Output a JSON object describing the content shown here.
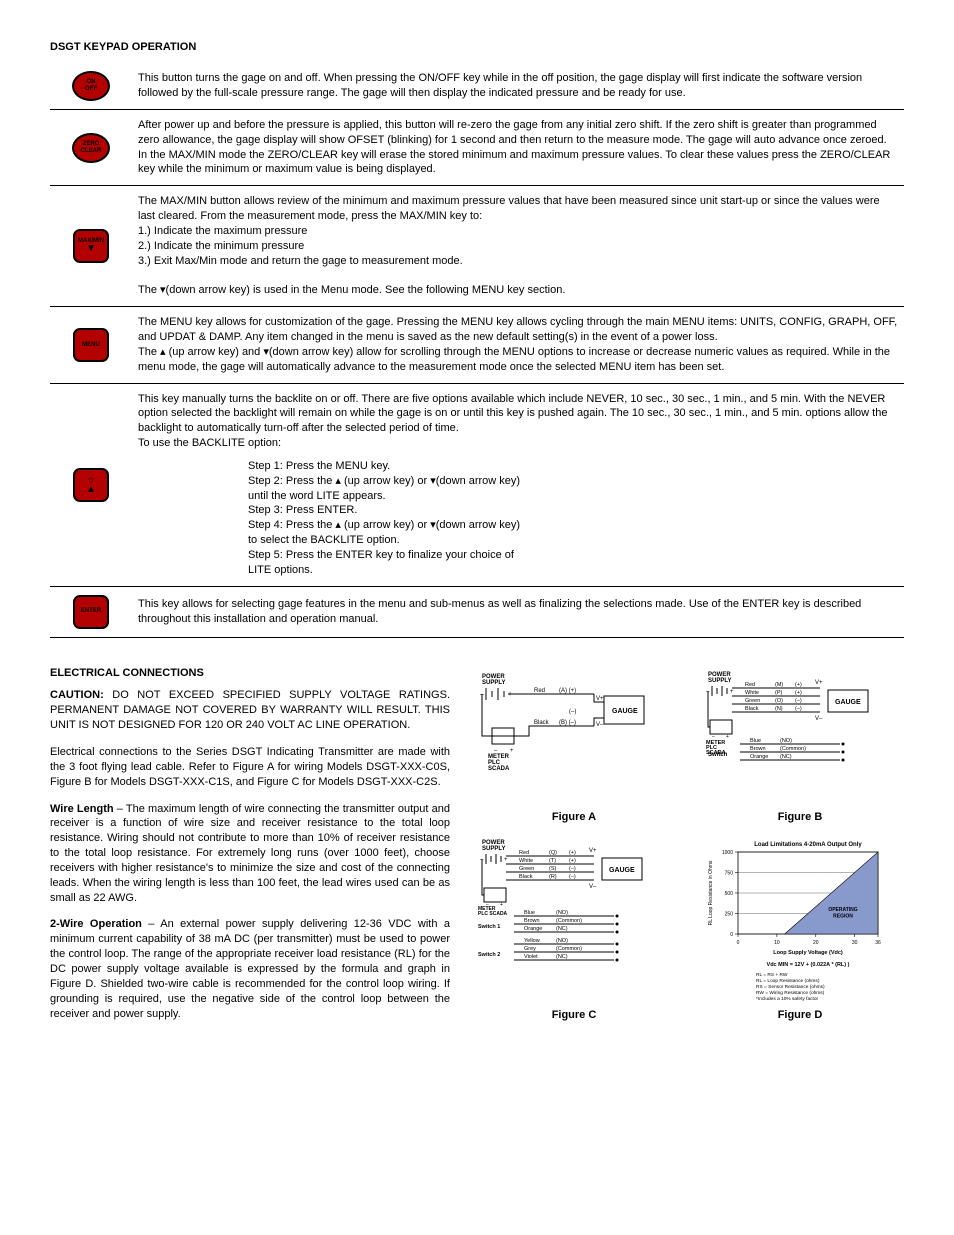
{
  "section1_title": "DSGT KEYPAD OPERATION",
  "keys": [
    {
      "label_top": "ON",
      "label_bot": "OFF",
      "shape": "oval",
      "desc": "This button turns the gage on and off.  When pressing the ON/OFF key while in the off position, the gage display will first indicate the software version followed by the full-scale pressure range.  The gage will then display the indicated pressure and be ready for use."
    },
    {
      "label_top": "ZERO",
      "label_bot": "CLEAR",
      "shape": "oval",
      "desc": "After power up and before the pressure is applied, this button will re-zero the gage from any initial zero shift.  If the zero shift is greater than programmed zero allowance, the gage display will show OFSET (blinking) for 1 second and then return to the measure mode. The gage will auto advance once zeroed.\nIn the MAX/MIN mode the ZERO/CLEAR key will erase the stored minimum and maximum pressure values.  To clear these values press the ZERO/CLEAR key while the minimum or maximum value is being displayed."
    },
    {
      "label_top": "MAX/MIN",
      "label_bot": "▼",
      "shape": "rect",
      "desc": "The MAX/MIN button allows review of the minimum and maximum pressure values that have been measured since unit start-up or since the values were last cleared. From the measurement mode, press the MAX/MIN key to:\n1.) Indicate the maximum pressure\n2.) Indicate the minimum pressure\n3.) Exit Max/Min mode and return the gage to measurement mode.\n\nThe ▾(down arrow key) is used in the Menu mode.  See the following MENU key section."
    },
    {
      "label_top": "MENU",
      "label_bot": "",
      "shape": "rect",
      "desc": "The MENU key allows for customization of the gage. Pressing the MENU key allows cycling through the main MENU items: UNITS, CONFIG, GRAPH, OFF, and UPDAT & DAMP. Any item changed in the menu is saved as the new default setting(s) in the event of a power loss.\nThe ▴ (up arrow key) and ▾(down arrow key) allow for scrolling through the MENU options to increase or decrease numeric values as required.  While in the menu mode, the gage will automatically advance to the measurement mode once the selected MENU item has been set."
    },
    {
      "label_top": "☼",
      "label_bot": "▲",
      "shape": "rect",
      "desc": "This key manually turns the backlite on or off. There are five options available which include NEVER, 10 sec., 30 sec., 1 min., and 5 min.  With the NEVER option selected the backlight will remain on while the gage is on or until this key is pushed again. The 10 sec., 30 sec., 1 min., and 5 min. options allow the backlight to automatically turn-off after the selected period of time.\nTo use the BACKLITE option:",
      "steps": "Step 1: Press the MENU key.\nStep 2: Press the ▴ (up arrow key) or ▾(down arrow key)\nuntil the word LITE appears.\nStep 3: Press ENTER.\nStep 4: Press the ▴ (up arrow key) or ▾(down arrow key)\nto select the BACKLITE option.\nStep 5: Press the ENTER key to finalize your choice of\nLITE options."
    },
    {
      "label_top": "ENTER",
      "label_bot": "",
      "shape": "rect",
      "desc": "This key allows for selecting gage features in the menu and sub-menus as well as finalizing the selections made. Use of the ENTER key is described throughout this installation and operation manual."
    }
  ],
  "section2_title": "ELECTRICAL CONNECTIONS",
  "caution_label": "CAUTION:",
  "caution_text": "DO NOT EXCEED SPECIFIED SUPPLY VOLTAGE RATINGS.  PERMANENT DAMAGE NOT COVERED BY WARRANTY WILL RESULT.  THIS UNIT IS NOT DESIGNED FOR 120 OR 240 VOLT AC LINE OPERATION.",
  "para_conn": "Electrical connections to the Series DSGT Indicating Transmitter are made with the 3 foot flying lead cable.  Refer to Figure A for wiring Models DSGT-XXX-C0S, Figure B for Models DSGT-XXX-C1S, and Figure C for Models DSGT-XXX-C2S.",
  "wire_label": "Wire Length",
  "wire_text": " – The maximum length of wire connecting the transmitter output and receiver is a function of wire size and receiver resistance to the total loop resistance.  Wiring should not contribute to more than 10% of receiver resistance to the total loop resistance. For extremely long runs (over 1000 feet), choose receivers with higher resistance's to minimize the size and cost of the connecting leads.  When the wiring length is less than 100 feet, the lead wires used can be as small as 22 AWG.",
  "twowire_label": "2-Wire Operation",
  "twowire_text": " – An external power supply delivering 12-36 VDC with a minimum current capability of 38 mA DC (per transmitter) must be used to power the control loop.  The range of the appropriate receiver load resistance (RL) for the DC power supply voltage available is expressed by the formula and graph in Figure D. Shielded two-wire cable is recommended for the control loop wiring. If grounding is required, use the negative side of the control  loop between the receiver and power supply.",
  "figA": {
    "label": "Figure A",
    "ps": "POWER\nSUPPLY",
    "wires": [
      {
        "color": "Red",
        "tag": "(A) (+)"
      },
      {
        "color": "Black",
        "tag": "(B) (–)"
      }
    ],
    "vplus": "V+",
    "vminus": "V–",
    "minus": "(–)",
    "gauge": "GAUGE",
    "meter": "METER\nPLC\nSCADA"
  },
  "figB": {
    "label": "Figure B",
    "ps": "POWER\nSUPPLY",
    "wires": [
      {
        "color": "Red",
        "tag": "(M)",
        "sign": "(+)"
      },
      {
        "color": "White",
        "tag": "(P)",
        "sign": "(+)"
      },
      {
        "color": "Green",
        "tag": "(O)",
        "sign": "(–)"
      },
      {
        "color": "Black",
        "tag": "(N)",
        "sign": "(–)"
      }
    ],
    "vplus": "V+",
    "vminus": "V–",
    "gauge": "GAUGE",
    "meter": "METER\nPLC\nSCADA",
    "sw": "Switch",
    "sw_wires": [
      {
        "color": "Blue",
        "tag": "(NO)"
      },
      {
        "color": "Brown",
        "tag": "(Common)"
      },
      {
        "color": "Orange",
        "tag": "(NC)"
      }
    ]
  },
  "figC": {
    "label": "Figure C",
    "ps": "POWER\nSUPPLY",
    "wires": [
      {
        "color": "Red",
        "tag": "(Q)",
        "sign": "(+)"
      },
      {
        "color": "White",
        "tag": "(T)",
        "sign": "(+)"
      },
      {
        "color": "Green",
        "tag": "(S)",
        "sign": "(–)"
      },
      {
        "color": "Black",
        "tag": "(R)",
        "sign": "(–)"
      }
    ],
    "vplus": "V+",
    "vminus": "V–",
    "gauge": "GAUGE",
    "meter": "METER\nPLC SCADA",
    "sw1": "Switch 1",
    "sw1_wires": [
      {
        "color": "Blue",
        "tag": "(NO)"
      },
      {
        "color": "Brown",
        "tag": "(Common)"
      },
      {
        "color": "Orange",
        "tag": "(NC)"
      }
    ],
    "sw2": "Switch 2",
    "sw2_wires": [
      {
        "color": "Yellow",
        "tag": "(NO)"
      },
      {
        "color": "Grey",
        "tag": "(Common)"
      },
      {
        "color": "Violet",
        "tag": "(NC)"
      }
    ]
  },
  "figD": {
    "label": "Figure D",
    "title": "Load Limitations 4-20mA Output Only",
    "ylabel": "RL Loop Resistance in Ohms",
    "yticks": [
      0,
      250,
      500,
      750,
      1000
    ],
    "xlabel": "Loop Supply Voltage (Vdc)",
    "xticks": [
      0,
      10,
      20,
      30,
      36
    ],
    "region_label": "OPERATING\nREGION",
    "formula": "Vdc MIN = 12V + (0.022A * (RL) )",
    "legend": "RL = RS + RW\nRL = Loop Resistance (ohms)\nRS = Sensor Resistance (ohms)\nRW = Wiring Resistance (ohms)\n*Includes a 10% safety factor",
    "fill_color": "#8899cc",
    "grid_color": "#000000",
    "xmin_line": 12,
    "xmax": 36,
    "ymax_line": 1000
  },
  "colors": {
    "button_bg": "#b30000",
    "button_border": "#000000"
  }
}
